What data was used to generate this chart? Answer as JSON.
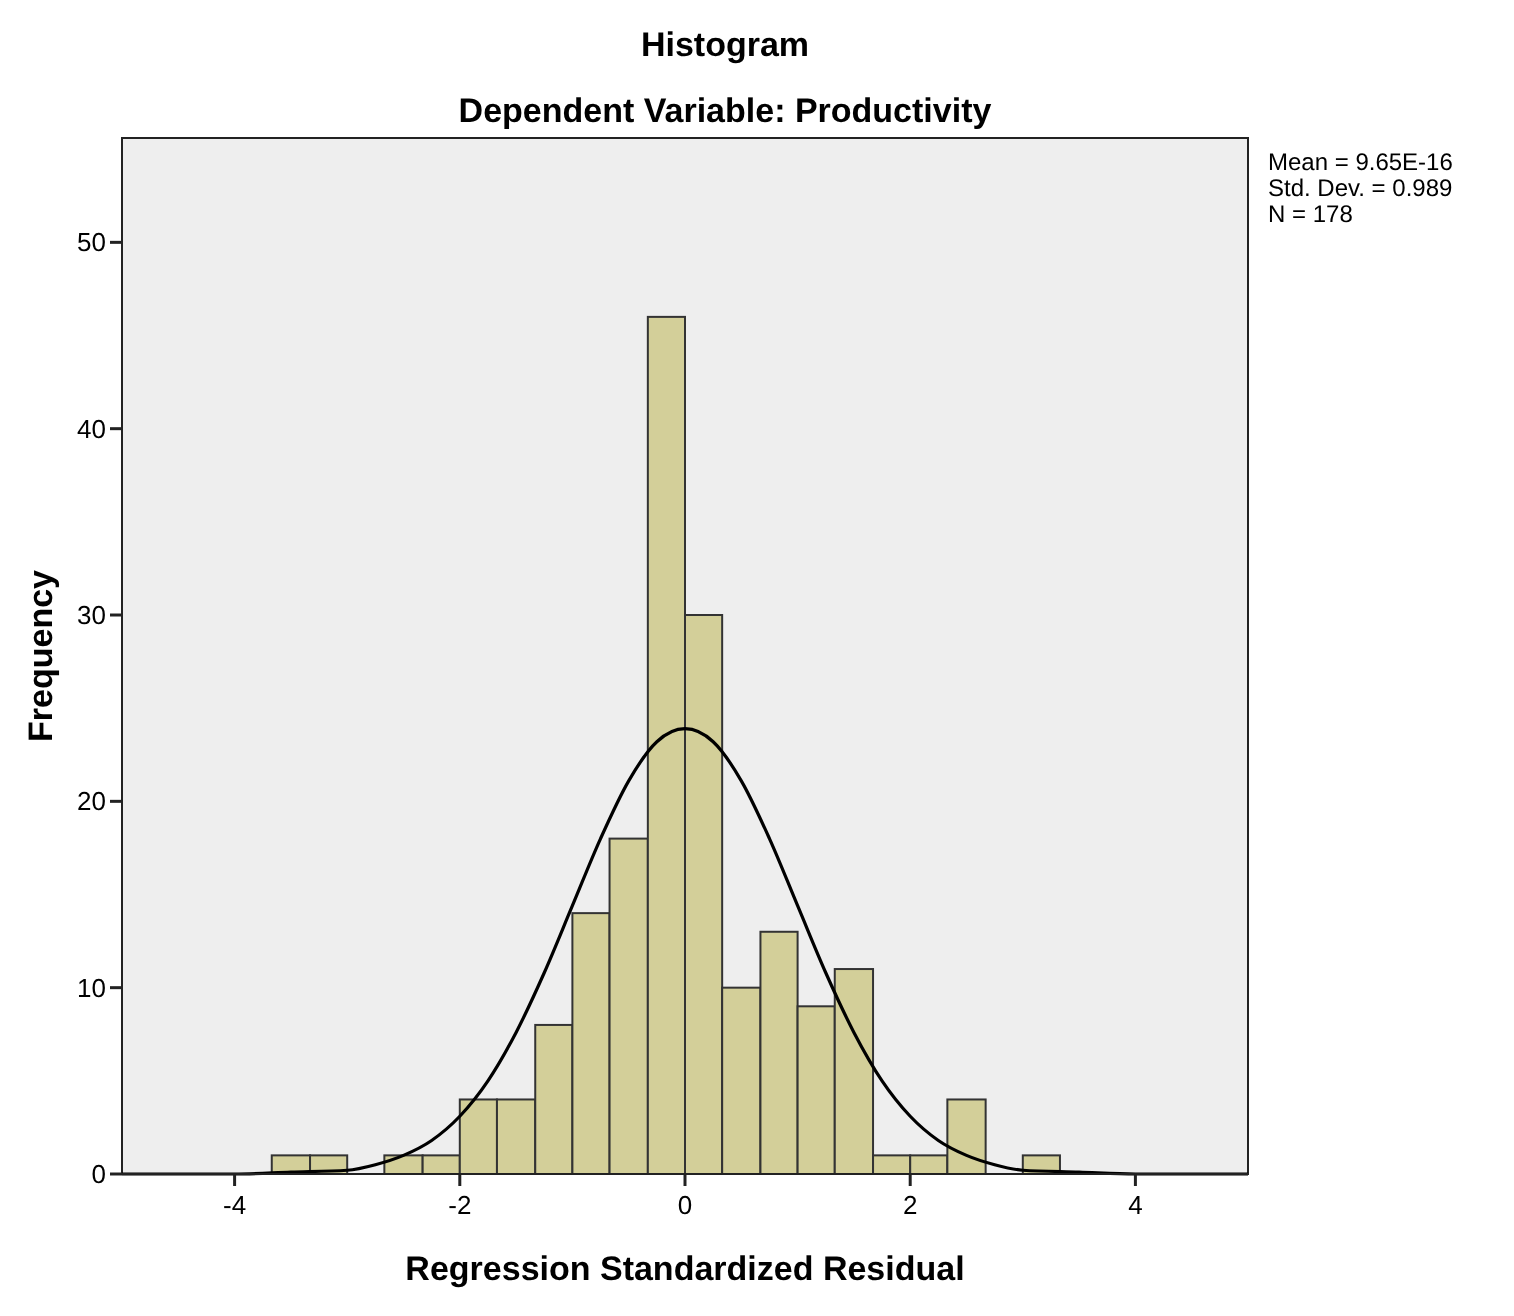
{
  "chart_data": {
    "type": "histogram",
    "title": "Histogram",
    "subtitle": "Dependent Variable: Productivity",
    "xlabel": "Regression Standardized Residual",
    "ylabel": "Frequency",
    "bins": [
      -3.67,
      -3.33,
      -3,
      -2.67,
      -2.33,
      -2,
      -1.67,
      -1.33,
      -1,
      -0.67,
      -0.33,
      0,
      0.33,
      0.67,
      1,
      1.33,
      1.67,
      2,
      2.33,
      2.67,
      3,
      3.33
    ],
    "values": [
      1,
      1,
      0,
      1,
      1,
      4,
      4,
      8,
      14,
      18,
      46,
      30,
      10,
      13,
      9,
      11,
      1,
      1,
      4,
      0,
      1
    ],
    "color": "#d3cf99",
    "series": [
      {
        "type": "line",
        "color": "#000000",
        "x": [
          -5,
          -4.5,
          -4,
          -3.5,
          -3,
          -2.75,
          -2.5,
          -2.25,
          -2,
          -1.75,
          -1.5,
          -1.25,
          -1,
          -0.75,
          -0.5,
          -0.25,
          0,
          0.25,
          0.5,
          0.75,
          1,
          1.25,
          1.5,
          1.75,
          2,
          2.25,
          2.5,
          2.75,
          3,
          3.5,
          4,
          4.5,
          5
        ],
        "values": [
          0,
          0,
          0,
          0.1,
          0.2,
          0.5,
          1,
          1.8,
          3.1,
          5,
          7.6,
          10.8,
          14.4,
          18,
          21.1,
          23.2,
          23.9,
          23.2,
          21.1,
          18,
          14.4,
          10.8,
          7.6,
          5,
          3.1,
          1.8,
          1,
          0.5,
          0.2,
          0.1,
          0,
          0,
          0
        ]
      }
    ],
    "xlim": [
      -5,
      5
    ],
    "xticks": [
      -4,
      -2,
      0,
      2,
      4
    ],
    "ylim": [
      0,
      55.6
    ],
    "yticks": [
      0,
      10,
      20,
      30,
      40,
      50
    ],
    "grid": false,
    "marker": "none",
    "line_style": "solid",
    "annotations": [
      "Mean = 9.65E-16",
      "Std. Dev. = 0.989",
      "N = 178"
    ]
  }
}
